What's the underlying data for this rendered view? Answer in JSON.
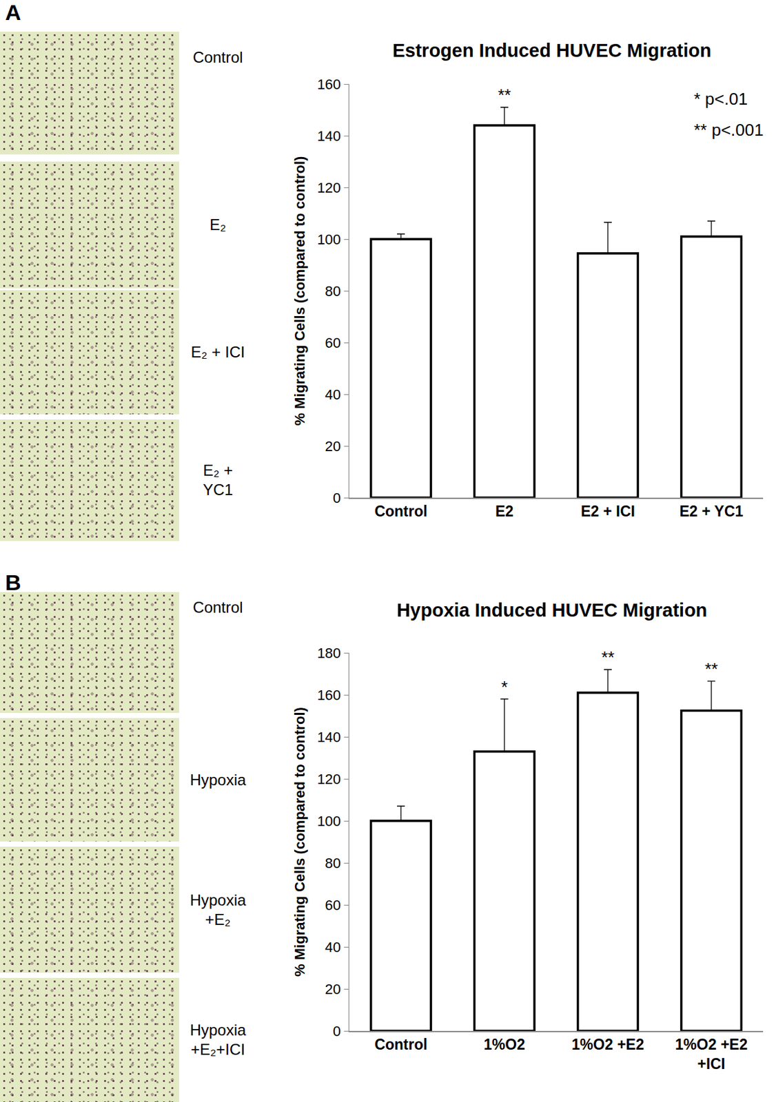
{
  "chart_data": [
    {
      "type": "bar",
      "panel_label": "A",
      "image_labels": [
        "Control",
        "E₂",
        "E₂ + ICI",
        "E₂ +\nYC1"
      ],
      "title": "Estrogen Induced HUVEC Migration",
      "ylabel": "% Migrating Cells (compared to control)",
      "categories": [
        "Control",
        "E2",
        "E2 + ICI",
        "E2 + YC1"
      ],
      "values": [
        100,
        144,
        94.5,
        101
      ],
      "errors": [
        2,
        7,
        12,
        6
      ],
      "significance": [
        null,
        "**",
        null,
        null
      ],
      "notes": [
        "* p<.01",
        "** p<.001"
      ],
      "color": "#ffffff",
      "ylim": [
        0,
        160
      ],
      "yticks": [
        0,
        20,
        40,
        60,
        80,
        100,
        120,
        140,
        160
      ],
      "grid": false
    },
    {
      "type": "bar",
      "panel_label": "B",
      "image_labels": [
        "Control",
        "Hypoxia",
        "Hypoxia\n+E₂",
        "Hypoxia\n+E₂+ICI"
      ],
      "title": "Hypoxia Induced HUVEC Migration",
      "ylabel": "% Migrating Cells (compared to control)",
      "categories": [
        "Control",
        "1%O2",
        "1%O2 +E2",
        "1%O2 +E2\n+ICI"
      ],
      "values": [
        100,
        133,
        161,
        152.5
      ],
      "errors": [
        7,
        25,
        11,
        14
      ],
      "significance": [
        null,
        "*",
        "**",
        "**"
      ],
      "color": "#ffffff",
      "ylim": [
        0,
        180
      ],
      "yticks": [
        0,
        20,
        40,
        60,
        80,
        100,
        120,
        140,
        160,
        180
      ],
      "grid": false
    }
  ]
}
